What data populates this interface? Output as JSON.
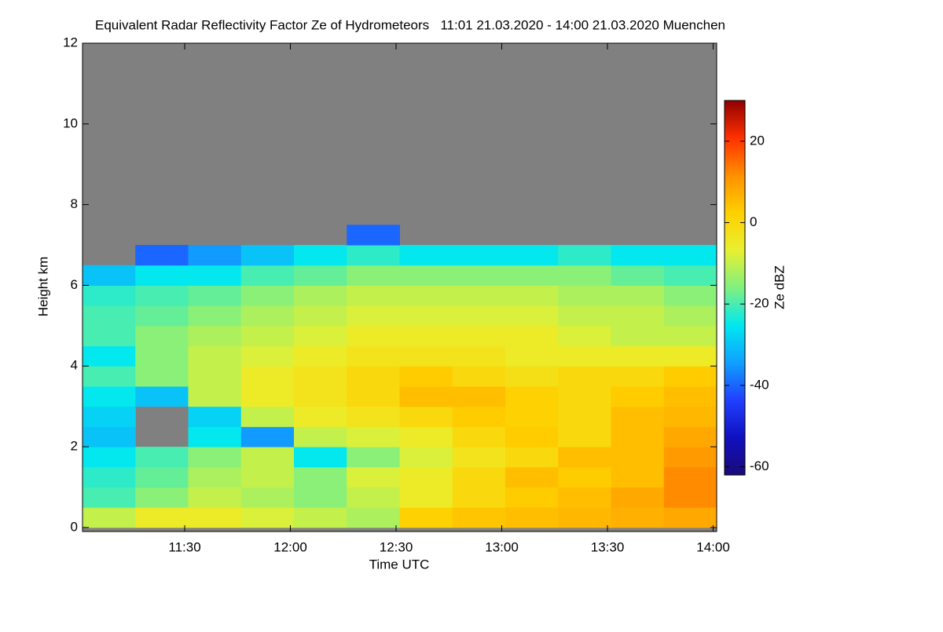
{
  "chart_data": {
    "type": "heatmap",
    "title": "Equivalent Radar Reflectivity Factor Ze of Hydrometeors   11:01 21.03.2020 - 14:00 21.03.2020 Muenchen",
    "x_label": "Time UTC",
    "y_label": "Height km",
    "colorbar_label": "Ze dBZ",
    "x_edges": [
      661,
      676,
      691,
      706,
      721,
      736,
      751,
      766,
      781,
      796,
      811,
      826,
      841
    ],
    "y_edges": [
      0,
      0.5,
      1,
      1.5,
      2,
      2.5,
      3,
      3.5,
      4,
      4.5,
      5,
      5.5,
      6,
      6.5,
      7,
      7.5
    ],
    "z": [
      [
        -10,
        -5,
        -5,
        -8,
        -10,
        -12,
        2,
        4,
        5,
        6,
        7,
        8
      ],
      [
        -20,
        -15,
        -10,
        -12,
        -15,
        -10,
        -5,
        0,
        3,
        5,
        8,
        12
      ],
      [
        -22,
        -18,
        -12,
        -10,
        -15,
        -8,
        -5,
        0,
        5,
        3,
        5,
        12
      ],
      [
        -25,
        -20,
        -15,
        -10,
        -25,
        -15,
        -8,
        -3,
        0,
        5,
        5,
        10
      ],
      [
        -30,
        null,
        -25,
        -35,
        -10,
        -8,
        -5,
        0,
        3,
        0,
        5,
        8
      ],
      [
        -28,
        null,
        -28,
        -10,
        -5,
        -3,
        0,
        3,
        2,
        0,
        5,
        6
      ],
      [
        -25,
        -30,
        -10,
        -5,
        -3,
        0,
        5,
        5,
        2,
        0,
        3,
        5
      ],
      [
        -20,
        -15,
        -10,
        -5,
        -3,
        0,
        3,
        0,
        -2,
        0,
        0,
        3
      ],
      [
        -25,
        -15,
        -10,
        -8,
        -5,
        -3,
        -3,
        -3,
        -5,
        -5,
        -5,
        -5
      ],
      [
        -20,
        -15,
        -12,
        -10,
        -8,
        -5,
        -5,
        -5,
        -5,
        -8,
        -10,
        -10
      ],
      [
        -20,
        -18,
        -15,
        -12,
        -10,
        -8,
        -8,
        -8,
        -8,
        -10,
        -10,
        -12
      ],
      [
        -22,
        -20,
        -18,
        -15,
        -12,
        -10,
        -10,
        -10,
        -10,
        -12,
        -12,
        -15
      ],
      [
        -30,
        -25,
        -25,
        -20,
        -18,
        -15,
        -15,
        -15,
        -15,
        -15,
        -18,
        -20
      ],
      [
        null,
        -40,
        -35,
        -30,
        -25,
        -22,
        -25,
        -25,
        -25,
        -22,
        -25,
        -25
      ],
      [
        null,
        null,
        null,
        null,
        null,
        -40,
        null,
        null,
        null,
        null,
        null,
        null
      ]
    ],
    "xlim": [
      661,
      841
    ],
    "ylim": [
      -0.1,
      12
    ],
    "xticks": [
      {
        "value": 690,
        "label": "11:30"
      },
      {
        "value": 720,
        "label": "12:00"
      },
      {
        "value": 750,
        "label": "12:30"
      },
      {
        "value": 780,
        "label": "13:00"
      },
      {
        "value": 810,
        "label": "13:30"
      },
      {
        "value": 840,
        "label": "14:00"
      }
    ],
    "yticks": [
      0,
      2,
      4,
      6,
      8,
      10,
      12
    ],
    "clim": [
      -62,
      30
    ],
    "cticks": [
      20,
      0,
      -20,
      -40,
      -60
    ],
    "colors": [
      "#1a0a7a",
      "#1010c0",
      "#2040ff",
      "#10a0ff",
      "#00e8f0",
      "#80f080",
      "#e8f030",
      "#ffd000",
      "#ff9000",
      "#ff3000",
      "#900000"
    ],
    "missing_color": "#808080"
  }
}
